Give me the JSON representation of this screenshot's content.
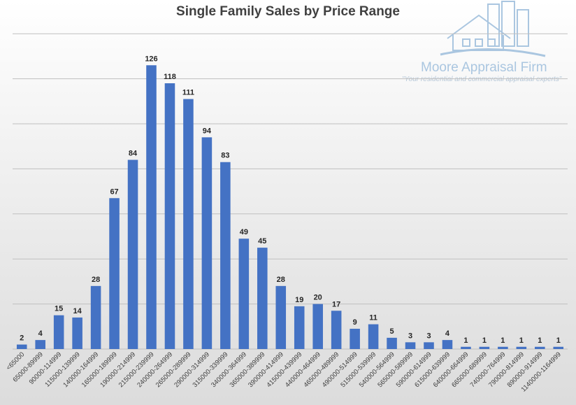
{
  "brand": {
    "name": "Moore Appraisal Firm",
    "tagline": "\"Your residential and commercial appraisal experts\""
  },
  "colors": {
    "bar": "#4472c4",
    "logo": "#aac6e0"
  },
  "chart_data": {
    "type": "bar",
    "title": "Single Family Sales by Price Range",
    "xlabel": "",
    "ylabel": "",
    "ylim": [
      0,
      140
    ],
    "grid": true,
    "categories": [
      "<65000",
      "65000-89999",
      "90000-114999",
      "115000-139999",
      "140000-164999",
      "165000-189999",
      "190000-214999",
      "215000-239999",
      "240000-264999",
      "265000-289999",
      "290000-314999",
      "315000-339999",
      "340000-364999",
      "365000-389999",
      "390000-414999",
      "415000-439999",
      "440000-464999",
      "465000-489999",
      "490000-514999",
      "515000-539999",
      "540000-564999",
      "565000-589999",
      "590000-614999",
      "615000-639999",
      "640000-664999",
      "665000-689999",
      "740000-764999",
      "790000-814999",
      "890000-914999",
      "1140000-1164999"
    ],
    "values": [
      2,
      4,
      15,
      14,
      28,
      67,
      84,
      126,
      118,
      111,
      94,
      83,
      49,
      45,
      28,
      19,
      20,
      17,
      9,
      11,
      5,
      3,
      3,
      4,
      1,
      1,
      1,
      1,
      1,
      1
    ]
  }
}
